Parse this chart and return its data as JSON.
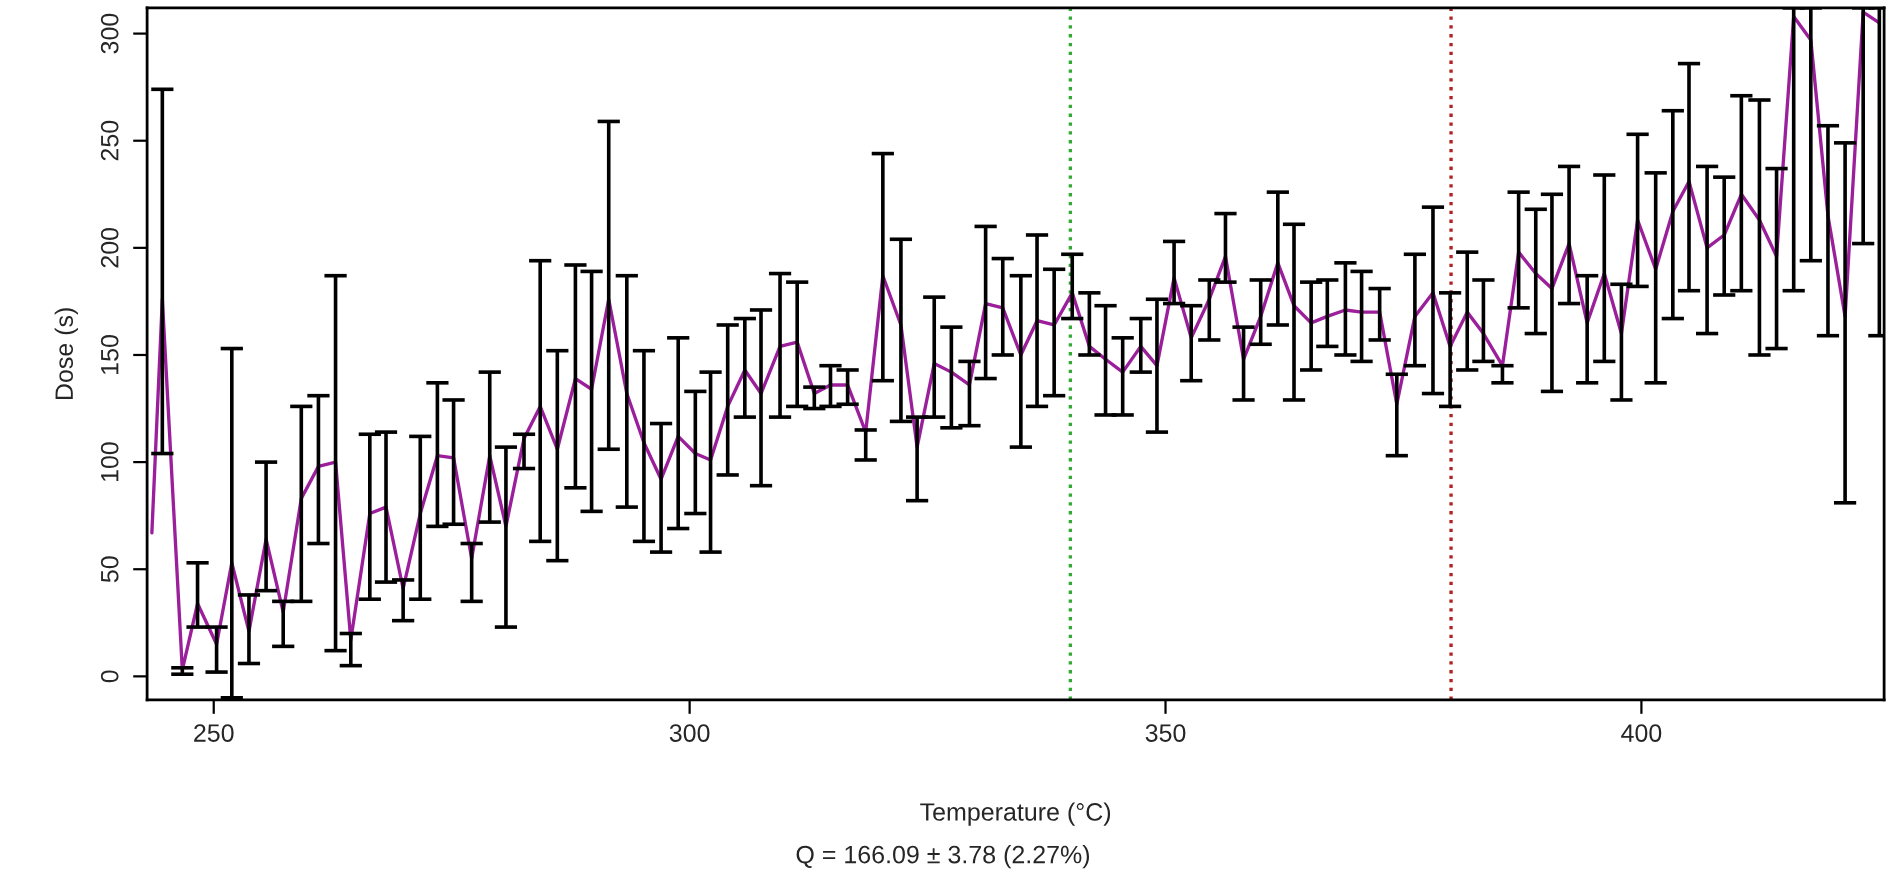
{
  "chart_data": {
    "type": "line",
    "xlabel": "Temperature (°C)",
    "ylabel": "Dose (s)",
    "annotations": [
      "Q = 166.09 ± 3.78 (2.27%)"
    ],
    "xlim": [
      243,
      425.5
    ],
    "xticks": [
      250,
      300,
      350,
      400
    ],
    "ylim": [
      -11,
      312
    ],
    "yticks": [
      0,
      50,
      100,
      150,
      200,
      250,
      300
    ],
    "grid": false,
    "legend": false,
    "marker": "none",
    "line_style": "solid",
    "ref_lines": [
      {
        "axis": "x",
        "value": 340,
        "color": "#33aa33",
        "line_style": "dotted"
      },
      {
        "axis": "x",
        "value": 380,
        "color": "#b22222",
        "line_style": "dotted"
      }
    ],
    "series": [
      {
        "color": "#9b1f9b",
        "x": [
          243.5,
          244.6,
          246.7,
          248.3,
          250.3,
          251.9,
          253.7,
          255.5,
          257.3,
          259.2,
          261.0,
          262.8,
          264.4,
          266.4,
          268.1,
          269.9,
          271.7,
          273.5,
          275.2,
          277.1,
          279.0,
          280.7,
          282.6,
          284.3,
          286.1,
          288.0,
          289.7,
          291.5,
          293.4,
          295.2,
          297.0,
          298.8,
          300.6,
          302.2,
          304.0,
          305.8,
          307.5,
          309.5,
          311.3,
          313.1,
          314.8,
          316.6,
          318.5,
          320.3,
          322.2,
          323.9,
          325.7,
          327.5,
          329.4,
          331.1,
          332.9,
          334.8,
          336.5,
          338.3,
          340.2,
          342.0,
          343.7,
          345.5,
          347.4,
          349.1,
          350.9,
          352.7,
          354.6,
          356.3,
          358.2,
          360.0,
          361.8,
          363.5,
          365.3,
          367.0,
          368.9,
          370.6,
          372.5,
          374.3,
          376.2,
          378.1,
          379.9,
          381.7,
          383.4,
          385.4,
          387.1,
          388.9,
          390.6,
          392.4,
          394.3,
          396.1,
          397.9,
          399.6,
          401.5,
          403.3,
          405.0,
          406.9,
          408.7,
          410.5,
          412.4,
          414.2,
          416.0,
          417.8,
          419.6,
          421.4,
          423.3,
          425.0
        ],
        "values": [
          67,
          176,
          3,
          34,
          15,
          53,
          21,
          64,
          30,
          83,
          98,
          100,
          17,
          76,
          79,
          41,
          76,
          103,
          102,
          55,
          103,
          70,
          111,
          126,
          106,
          139,
          134,
          176,
          132,
          109,
          92,
          112,
          104,
          101,
          126,
          143,
          132,
          154,
          156,
          132,
          136,
          136,
          114,
          187,
          164,
          107,
          146,
          142,
          136,
          174,
          172,
          150,
          166,
          164,
          179,
          154,
          148,
          142,
          154,
          145,
          186,
          158,
          176,
          196,
          148,
          168,
          193,
          173,
          165,
          168,
          171,
          170,
          170,
          127,
          168,
          179,
          154,
          170,
          160,
          145,
          198,
          188,
          181,
          202,
          165,
          188,
          160,
          213,
          190,
          217,
          231,
          200,
          206,
          225,
          213,
          196,
          308,
          297,
          215,
          168,
          310,
          305
        ],
        "errors": [
          null,
          [
            104,
            274
          ],
          [
            1,
            4
          ],
          [
            23,
            53
          ],
          [
            2,
            23
          ],
          [
            -10,
            153
          ],
          [
            6,
            38
          ],
          [
            40,
            100
          ],
          [
            14,
            35
          ],
          [
            35,
            126
          ],
          [
            62,
            131
          ],
          [
            12,
            187
          ],
          [
            5,
            20
          ],
          [
            36,
            113
          ],
          [
            44,
            114
          ],
          [
            26,
            45
          ],
          [
            36,
            112
          ],
          [
            70,
            137
          ],
          [
            71,
            129
          ],
          [
            35,
            62
          ],
          [
            72,
            142
          ],
          [
            23,
            107
          ],
          [
            97,
            113
          ],
          [
            63,
            194
          ],
          [
            54,
            152
          ],
          [
            88,
            192
          ],
          [
            77,
            189
          ],
          [
            106,
            259
          ],
          [
            79,
            187
          ],
          [
            63,
            152
          ],
          [
            58,
            118
          ],
          [
            69,
            158
          ],
          [
            76,
            133
          ],
          [
            58,
            142
          ],
          [
            94,
            164
          ],
          [
            121,
            167
          ],
          [
            89,
            171
          ],
          [
            121,
            188
          ],
          [
            126,
            184
          ],
          [
            125,
            135
          ],
          [
            126,
            145
          ],
          [
            127,
            143
          ],
          [
            101,
            115
          ],
          [
            138,
            244
          ],
          [
            119,
            204
          ],
          [
            82,
            121
          ],
          [
            121,
            177
          ],
          [
            116,
            163
          ],
          [
            117,
            147
          ],
          [
            139,
            210
          ],
          [
            150,
            195
          ],
          [
            107,
            187
          ],
          [
            126,
            206
          ],
          [
            131,
            190
          ],
          [
            167,
            197
          ],
          [
            150,
            179
          ],
          [
            122,
            173
          ],
          [
            122,
            158
          ],
          [
            142,
            167
          ],
          [
            114,
            176
          ],
          [
            174,
            203
          ],
          [
            138,
            173
          ],
          [
            157,
            185
          ],
          [
            184,
            216
          ],
          [
            129,
            163
          ],
          [
            155,
            185
          ],
          [
            164,
            226
          ],
          [
            129,
            211
          ],
          [
            143,
            184
          ],
          [
            154,
            185
          ],
          [
            150,
            193
          ],
          [
            147,
            189
          ],
          [
            157,
            181
          ],
          [
            103,
            141
          ],
          [
            145,
            197
          ],
          [
            132,
            219
          ],
          [
            126,
            179
          ],
          [
            143,
            198
          ],
          [
            147,
            185
          ],
          [
            137,
            145
          ],
          [
            172,
            226
          ],
          [
            160,
            218
          ],
          [
            133,
            225
          ],
          [
            174,
            238
          ],
          [
            137,
            187
          ],
          [
            147,
            234
          ],
          [
            129,
            183
          ],
          [
            182,
            253
          ],
          [
            137,
            235
          ],
          [
            167,
            264
          ],
          [
            180,
            286
          ],
          [
            160,
            238
          ],
          [
            178,
            233
          ],
          [
            180,
            271
          ],
          [
            150,
            269
          ],
          [
            153,
            237
          ],
          [
            180,
            312
          ],
          [
            194,
            312
          ],
          [
            159,
            257
          ],
          [
            81,
            249
          ],
          [
            202,
            312
          ],
          [
            159,
            312
          ]
        ]
      }
    ]
  }
}
